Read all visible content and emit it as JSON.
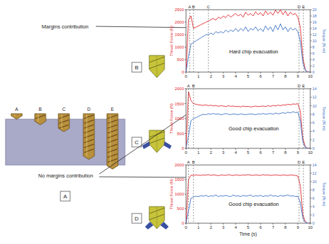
{
  "diagram": {
    "drill_labels": [
      "A",
      "B",
      "C",
      "D",
      "E"
    ],
    "panel_labels": [
      "A",
      "B",
      "C",
      "D"
    ],
    "annotations": [
      "Margins contribution",
      "No margins contribution"
    ]
  },
  "chart_data": [
    {
      "type": "line",
      "grid": false,
      "xlim": [
        0,
        10
      ],
      "xticks": [
        0,
        1,
        2,
        3,
        4,
        5,
        6,
        7,
        8,
        9,
        10
      ],
      "ylim": [
        0,
        2500
      ],
      "yticks": [
        0,
        500,
        1000,
        1500,
        2000,
        2500
      ],
      "y2lim": [
        0,
        20
      ],
      "y2ticks": [
        0,
        2,
        4,
        6,
        8,
        10,
        12,
        14,
        16,
        18,
        20
      ],
      "y_label": "Thrust Force (N)",
      "y2_label": "Torque (N.m)",
      "annotation": "Hard chip evacuation",
      "markers": [
        {
          "label": "A",
          "x": 0.3
        },
        {
          "label": "B",
          "x": 0.6
        },
        {
          "label": "C",
          "x": 1.8
        },
        {
          "label": "D",
          "x": 9.1
        },
        {
          "label": "E",
          "x": 9.45
        }
      ],
      "x": [
        0,
        0.2,
        0.4,
        0.6,
        0.8,
        1,
        1.2,
        1.4,
        1.6,
        1.8,
        2,
        2.2,
        2.4,
        2.6,
        2.8,
        3,
        3.2,
        3.4,
        3.6,
        3.8,
        4,
        4.2,
        4.4,
        4.6,
        4.8,
        5,
        5.2,
        5.4,
        5.6,
        5.8,
        6,
        6.2,
        6.4,
        6.6,
        6.8,
        7,
        7.2,
        7.4,
        7.6,
        7.8,
        8,
        8.2,
        8.4,
        8.6,
        8.8,
        9,
        9.2,
        9.4,
        9.6,
        9.8,
        10
      ],
      "series": [
        {
          "color": "#e0262b",
          "axis": "y",
          "values": [
            0,
            2100,
            2250,
            1750,
            1800,
            1850,
            1900,
            1950,
            2000,
            2050,
            2100,
            2150,
            2080,
            2200,
            2150,
            2250,
            2180,
            2300,
            2200,
            2280,
            2350,
            2250,
            2320,
            2200,
            2400,
            2280,
            2350,
            2250,
            2420,
            2300,
            2380,
            2250,
            2450,
            2300,
            2400,
            2280,
            2480,
            2350,
            2500,
            2300,
            2450,
            2250,
            2400,
            2300,
            2350,
            2200,
            1800,
            600,
            100,
            0,
            0
          ]
        },
        {
          "color": "#3a6fc4",
          "axis": "y2",
          "values": [
            0,
            5,
            9,
            9.5,
            10,
            10.5,
            11,
            11.5,
            12,
            12,
            12.5,
            12,
            13,
            12.5,
            13,
            12.5,
            13.5,
            12.8,
            13.5,
            13,
            14,
            13,
            14,
            13.2,
            14.5,
            13,
            14,
            13.5,
            14.5,
            13.2,
            14,
            13,
            14.8,
            13.5,
            14.5,
            13,
            15,
            13.5,
            15.5,
            13.5,
            14.5,
            13,
            14.2,
            13.5,
            14,
            13,
            10,
            3,
            0.5,
            0,
            0
          ]
        }
      ]
    },
    {
      "type": "line",
      "grid": false,
      "xlim": [
        0,
        10
      ],
      "xticks": [
        0,
        1,
        2,
        3,
        4,
        5,
        6,
        7,
        8,
        9,
        10
      ],
      "ylim": [
        0,
        2000
      ],
      "yticks": [
        0,
        500,
        1000,
        1500,
        2000
      ],
      "y2lim": [
        0,
        14
      ],
      "y2ticks": [
        0,
        2,
        4,
        6,
        8,
        10,
        12,
        14
      ],
      "y_label": "Thrust Force (N)",
      "y2_label": "Torque (N.m)",
      "annotation": "Good chip evacuation",
      "markers": [
        {
          "label": "A",
          "x": 0.2
        },
        {
          "label": "B",
          "x": 0.6
        },
        {
          "label": "D",
          "x": 9.1
        },
        {
          "label": "E",
          "x": 9.45
        }
      ],
      "x": [
        0,
        0.2,
        0.4,
        0.6,
        0.8,
        1,
        1.2,
        1.4,
        1.6,
        1.8,
        2,
        2.2,
        2.4,
        2.6,
        2.8,
        3,
        3.2,
        3.4,
        3.6,
        3.8,
        4,
        4.2,
        4.4,
        4.6,
        4.8,
        5,
        5.2,
        5.4,
        5.6,
        5.8,
        6,
        6.2,
        6.4,
        6.6,
        6.8,
        7,
        7.2,
        7.4,
        7.6,
        7.8,
        8,
        8.2,
        8.4,
        8.6,
        8.8,
        9,
        9.2,
        9.4,
        9.6,
        9.8,
        10
      ],
      "series": [
        {
          "color": "#e0262b",
          "axis": "y",
          "values": [
            0,
            1900,
            1600,
            1500,
            1480,
            1460,
            1450,
            1440,
            1460,
            1430,
            1450,
            1420,
            1440,
            1410,
            1430,
            1420,
            1400,
            1430,
            1410,
            1420,
            1400,
            1410,
            1390,
            1420,
            1400,
            1410,
            1390,
            1400,
            1420,
            1400,
            1410,
            1420,
            1400,
            1430,
            1410,
            1440,
            1420,
            1450,
            1430,
            1460,
            1450,
            1480,
            1460,
            1490,
            1480,
            1500,
            1250,
            350,
            50,
            0,
            0
          ]
        },
        {
          "color": "#3a6fc4",
          "axis": "y2",
          "values": [
            0,
            3,
            6.5,
            7,
            7.2,
            7.5,
            7.8,
            8,
            7.9,
            8.1,
            8,
            8.2,
            8,
            8.1,
            7.9,
            8,
            8.2,
            8,
            7.9,
            8.1,
            8,
            7.9,
            8.1,
            8,
            7.9,
            8,
            8.1,
            8,
            7.9,
            8.1,
            8,
            8.2,
            8,
            8.1,
            8.2,
            8,
            8.3,
            8.1,
            8.2,
            8.4,
            8.2,
            8.5,
            8.3,
            8.6,
            8.4,
            8.5,
            6.5,
            1.5,
            0.2,
            0,
            0
          ]
        }
      ]
    },
    {
      "type": "line",
      "grid": false,
      "xlim": [
        0,
        10
      ],
      "xticks": [
        0,
        1,
        2,
        3,
        4,
        5,
        6,
        7,
        8,
        9,
        10
      ],
      "ylim": [
        0,
        2000
      ],
      "yticks": [
        0,
        500,
        1000,
        1500,
        2000
      ],
      "y2lim": [
        0,
        14
      ],
      "y2ticks": [
        0,
        2,
        4,
        6,
        8,
        10,
        12,
        14
      ],
      "y_label": "Thrust Force (N)",
      "y2_label": "Torque (N.m)",
      "x_label": "Time (s)",
      "annotation": "Good chip evacuation",
      "markers": [
        {
          "label": "A",
          "x": 0.2
        },
        {
          "label": "B",
          "x": 0.6
        },
        {
          "label": "D",
          "x": 9.1
        },
        {
          "label": "E",
          "x": 9.45
        }
      ],
      "x": [
        0,
        0.2,
        0.4,
        0.6,
        0.8,
        1,
        1.2,
        1.4,
        1.6,
        1.8,
        2,
        2.2,
        2.4,
        2.6,
        2.8,
        3,
        3.2,
        3.4,
        3.6,
        3.8,
        4,
        4.2,
        4.4,
        4.6,
        4.8,
        5,
        5.2,
        5.4,
        5.6,
        5.8,
        6,
        6.2,
        6.4,
        6.6,
        6.8,
        7,
        7.2,
        7.4,
        7.6,
        7.8,
        8,
        8.2,
        8.4,
        8.6,
        8.8,
        9,
        9.2,
        9.4,
        9.6,
        9.8,
        10
      ],
      "series": [
        {
          "color": "#e0262b",
          "axis": "y",
          "values": [
            0,
            1500,
            1650,
            1640,
            1660,
            1650,
            1640,
            1660,
            1650,
            1670,
            1640,
            1660,
            1650,
            1630,
            1660,
            1650,
            1640,
            1670,
            1650,
            1640,
            1660,
            1650,
            1640,
            1660,
            1650,
            1670,
            1650,
            1640,
            1660,
            1650,
            1640,
            1670,
            1650,
            1660,
            1640,
            1650,
            1660,
            1650,
            1640,
            1660,
            1650,
            1640,
            1660,
            1650,
            1640,
            1620,
            1300,
            300,
            50,
            0,
            0
          ]
        },
        {
          "color": "#3a6fc4",
          "axis": "y2",
          "values": [
            0,
            3,
            6,
            6.3,
            6.5,
            6.4,
            6.6,
            6.5,
            6.7,
            6.4,
            6.6,
            6.5,
            6.8,
            6.4,
            6.6,
            6.5,
            6.7,
            6.5,
            6.4,
            6.8,
            6.5,
            6.6,
            6.4,
            6.7,
            6.5,
            6.6,
            6.8,
            6.4,
            6.6,
            6.5,
            6.7,
            6.4,
            6.6,
            6.5,
            6.8,
            6.5,
            6.6,
            6.4,
            6.7,
            6.5,
            6.6,
            6.8,
            6.5,
            6.6,
            6.4,
            6.5,
            5,
            1.2,
            0.2,
            0,
            0
          ]
        }
      ]
    }
  ]
}
